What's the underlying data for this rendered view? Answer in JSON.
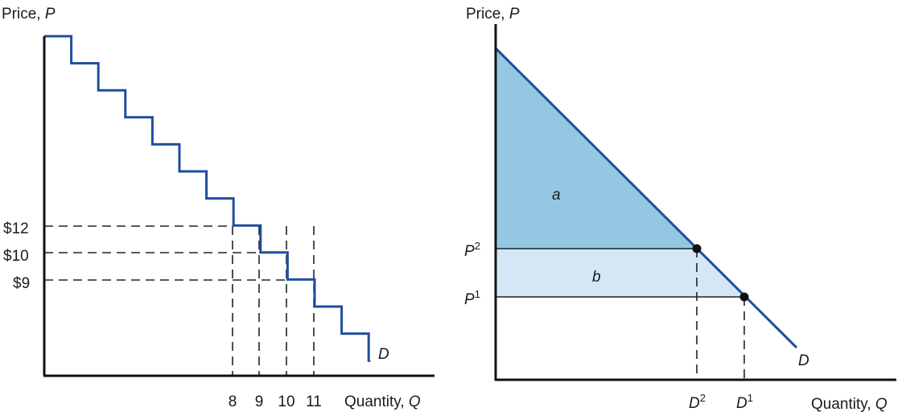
{
  "colors": {
    "curve": "#1f4e9c",
    "area_a": "#94c7e2",
    "area_b": "#d3e8f4",
    "axis": "#111111",
    "dot": "#111111"
  },
  "chart_data": [
    {
      "type": "line",
      "subtype": "step",
      "ylabel_text": "Price, ",
      "ylabel_var": "P",
      "xlabel_text": "Quantity, ",
      "xlabel_var": "Q",
      "curve_label": "D",
      "steps": 13,
      "labeled_points": [
        {
          "x": 8,
          "y": 12,
          "xlabel": "8",
          "ylabel": "$12"
        },
        {
          "x": 9,
          "y": 10,
          "xlabel": "9",
          "ylabel": "$10"
        },
        {
          "x": 10,
          "y": 9,
          "xlabel": "10",
          "ylabel": "$9"
        },
        {
          "x": 11,
          "y": null,
          "xlabel": "11",
          "ylabel": ""
        }
      ]
    },
    {
      "type": "line",
      "ylabel_text": "Price, ",
      "ylabel_var": "P",
      "xlabel_text": "Quantity, ",
      "xlabel_var": "Q",
      "curve_label": "D",
      "points": {
        "P2": {
          "label": "P",
          "sup": "2",
          "qlabel": "D",
          "qsup": "2"
        },
        "P1": {
          "label": "P",
          "sup": "1",
          "qlabel": "D",
          "qsup": "1"
        }
      },
      "areas": [
        {
          "name": "a",
          "label": "a",
          "description": "triangle above P2 under D"
        },
        {
          "name": "b",
          "label": "b",
          "description": "band between P1 and P2 under D"
        }
      ]
    }
  ]
}
